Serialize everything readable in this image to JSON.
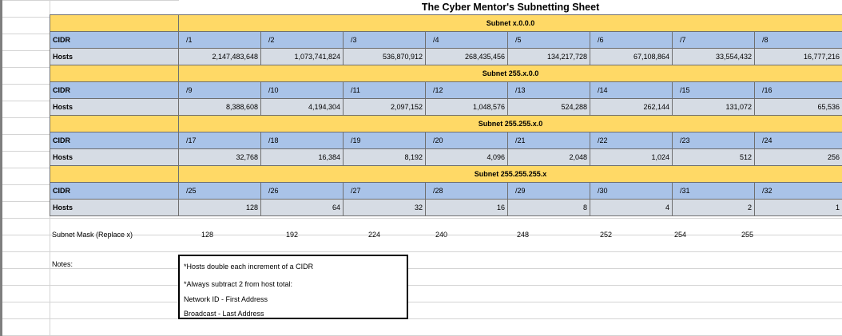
{
  "title": "The Cyber Mentor's Subnetting Sheet",
  "row_labels": {
    "cidr": "CIDR",
    "hosts": "Hosts"
  },
  "blocks": [
    {
      "subnet": "Subnet x.0.0.0",
      "cidr": [
        "/1",
        "/2",
        "/3",
        "/4",
        "/5",
        "/6",
        "/7",
        "/8"
      ],
      "hosts": [
        "2,147,483,648",
        "1,073,741,824",
        "536,870,912",
        "268,435,456",
        "134,217,728",
        "67,108,864",
        "33,554,432",
        "16,777,216"
      ]
    },
    {
      "subnet": "Subnet 255.x.0.0",
      "cidr": [
        "/9",
        "/10",
        "/11",
        "/12",
        "/13",
        "/14",
        "/15",
        "/16"
      ],
      "hosts": [
        "8,388,608",
        "4,194,304",
        "2,097,152",
        "1,048,576",
        "524,288",
        "262,144",
        "131,072",
        "65,536"
      ]
    },
    {
      "subnet": "Subnet 255.255.x.0",
      "cidr": [
        "/17",
        "/18",
        "/19",
        "/20",
        "/21",
        "/22",
        "/23",
        "/24"
      ],
      "hosts": [
        "32,768",
        "16,384",
        "8,192",
        "4,096",
        "2,048",
        "1,024",
        "512",
        "256"
      ]
    },
    {
      "subnet": "Subnet 255.255.255.x",
      "cidr": [
        "/25",
        "/26",
        "/27",
        "/28",
        "/29",
        "/30",
        "/31",
        "/32"
      ],
      "hosts": [
        "128",
        "64",
        "32",
        "16",
        "8",
        "4",
        "2",
        "1"
      ]
    }
  ],
  "mask": {
    "label": "Subnet Mask (Replace x)",
    "values": [
      "128",
      "192",
      "224",
      "240",
      "248",
      "252",
      "254",
      "255"
    ]
  },
  "notes": {
    "label": "Notes:",
    "lines": [
      "*Hosts double each increment of a CIDR",
      "*Always subtract 2 from host total:",
      "Network ID - First Address",
      "Broadcast - Last Address"
    ]
  },
  "colors": {
    "subnet_band": "#ffd966",
    "cidr_row": "#a9c3e8",
    "hosts_row": "#d6dce4",
    "border": "#6f6f6f"
  }
}
